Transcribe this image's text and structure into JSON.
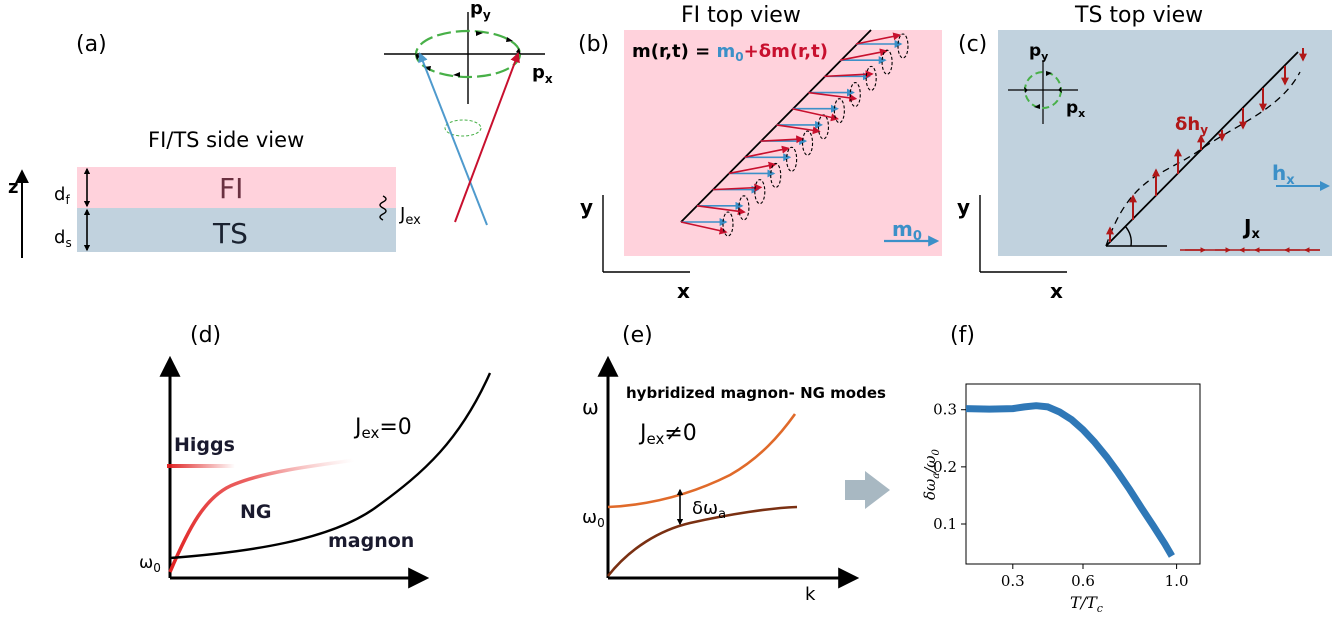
{
  "colors": {
    "fi": "#ffd2dc",
    "ts": "#c1d2de",
    "blue": "#3c90c8",
    "red": "#c8102e",
    "darkred": "#b01818",
    "green": "#48b048",
    "orange": "#e06a2a",
    "brown": "#7a3012",
    "plot_blue": "#2f78b7",
    "gray_arrow": "#a8b8c2",
    "navy": "#1a1a2e"
  },
  "panel_a": {
    "label": "(a)",
    "title": "FI/TS side view",
    "fi": "FI",
    "ts": "TS",
    "z": "z",
    "df": "d",
    "df_sub": "f",
    "ds": "d",
    "ds_sub": "s",
    "jex": "J",
    "jex_sub": "ex",
    "px": "p",
    "px_sub": "x",
    "py": "p",
    "py_sub": "y"
  },
  "panel_b": {
    "label": "(b)",
    "title": "FI top view",
    "eq_lhs": "m(r,t) = ",
    "eq_m0": "m",
    "eq_m0_sub": "0",
    "eq_rest": "+δm(r,t)",
    "m0": "m",
    "m0_sub": "0",
    "x": "x",
    "y": "y"
  },
  "panel_c": {
    "label": "(c)",
    "title": "TS top view",
    "dhy": "δh",
    "dhy_sub": "y",
    "hx": "h",
    "hx_sub": "x",
    "jx": "J",
    "jx_sub": "x",
    "px": "p",
    "px_sub": "x",
    "py": "p",
    "py_sub": "y",
    "x": "x",
    "y": "y"
  },
  "panel_d": {
    "label": "(d)",
    "higgs": "Higgs",
    "ng": "NG",
    "magnon": "magnon",
    "jex": "J",
    "jex_sub": "ex",
    "jex_val": "=0",
    "omega": "ω",
    "omega_sub": "0"
  },
  "panel_e": {
    "label": "(e)",
    "title": "hybridized magnon- NG modes",
    "omega": "ω",
    "jex": "J",
    "jex_sub": "ex",
    "jex_val": "≠0",
    "domega": "δω",
    "domega_sub": "a",
    "omega0": "ω",
    "omega0_sub": "0",
    "k": "k"
  },
  "chart_data": {
    "type": "line",
    "title": "",
    "xlabel": "T/T_c",
    "ylabel": "δω_a/ω_0",
    "xlim": [
      0.1,
      1.1
    ],
    "ylim": [
      0.03,
      0.345
    ],
    "xticks": [
      0.3,
      0.6,
      1.0
    ],
    "xtick_labels": [
      "0.3",
      "0.6",
      "1.0"
    ],
    "yticks": [
      0.1,
      0.2,
      0.3
    ],
    "ytick_labels": [
      "0.1",
      "0.2",
      "0.3"
    ],
    "grid": false,
    "series": [
      {
        "x": [
          0.1,
          0.2,
          0.3,
          0.35,
          0.4,
          0.45,
          0.5,
          0.55,
          0.6,
          0.65,
          0.7,
          0.75,
          0.8,
          0.85,
          0.9,
          0.95,
          0.98
        ],
        "y": [
          0.302,
          0.301,
          0.302,
          0.305,
          0.307,
          0.305,
          0.296,
          0.283,
          0.265,
          0.243,
          0.218,
          0.19,
          0.16,
          0.128,
          0.097,
          0.065,
          0.044
        ]
      }
    ],
    "panel_label": "(f)"
  }
}
